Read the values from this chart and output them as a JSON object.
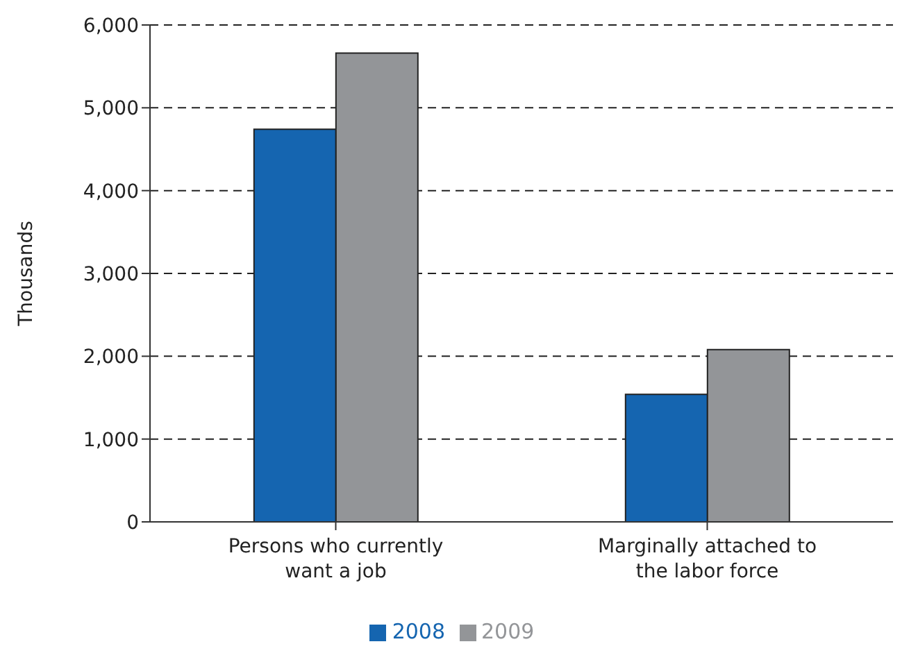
{
  "chart_data": {
    "type": "bar",
    "ylabel": "Thousands",
    "categories": [
      "Persons who currently want a job",
      "Marginally attached to the labor force"
    ],
    "series": [
      {
        "name": "2008",
        "color": "#1565b0",
        "values": [
          4740,
          1540
        ]
      },
      {
        "name": "2009",
        "color": "#939598",
        "values": [
          5660,
          2080
        ]
      }
    ],
    "ylim": [
      0,
      6000
    ],
    "yticks": [
      {
        "value": 0,
        "label": "0"
      },
      {
        "value": 1000,
        "label": "1,000"
      },
      {
        "value": 2000,
        "label": "2,000"
      },
      {
        "value": 3000,
        "label": "3,000"
      },
      {
        "value": 4000,
        "label": "4,000"
      },
      {
        "value": 5000,
        "label": "5,000"
      },
      {
        "value": 6000,
        "label": "6,000"
      }
    ],
    "grid": "y",
    "legend": "bottom"
  }
}
